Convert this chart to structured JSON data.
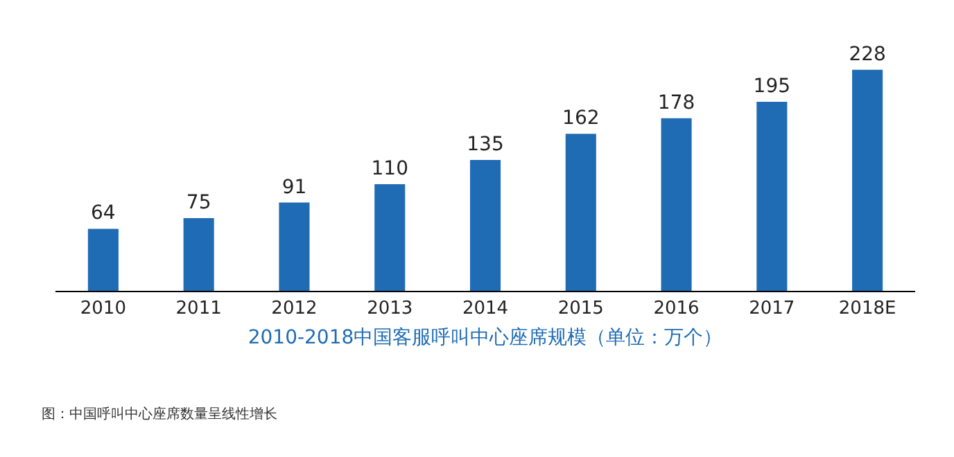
{
  "chart_data": {
    "type": "bar",
    "xlabel": "2010-2018中国客服呼叫中心座席规模（单位：万个）",
    "categories": [
      "2010",
      "2011",
      "2012",
      "2013",
      "2014",
      "2015",
      "2016",
      "2017",
      "2018E"
    ],
    "values": [
      64,
      75,
      91,
      110,
      135,
      162,
      178,
      195,
      228
    ],
    "color": "#1f6cb4",
    "data_labels": true,
    "tick_labels": "x",
    "annotations": [
      "图：中国呼叫中心座席数量呈线性增长"
    ]
  }
}
